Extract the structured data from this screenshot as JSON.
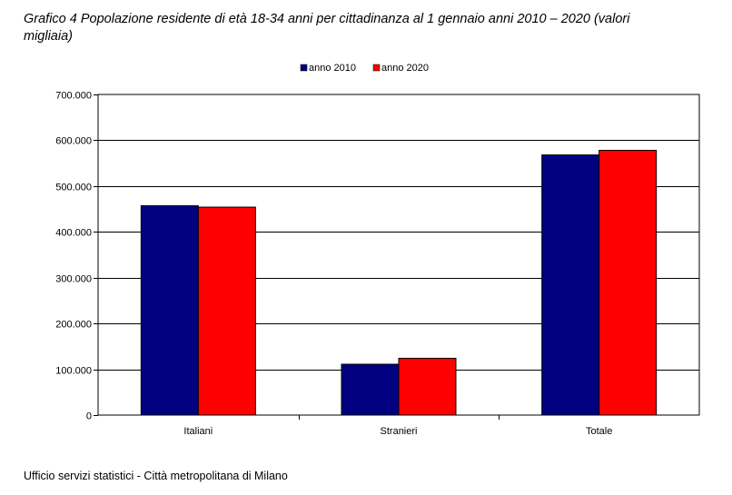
{
  "figure": {
    "title_line1": "Grafico 4  Popolazione residente di età 18-34 anni per cittadinanza al 1 gennaio anni 2010 – 2020 (valori",
    "title_line2": "migliaia)",
    "source": "Ufficio servizi statistici - Città metropolitana di Milano"
  },
  "chart_data": {
    "type": "bar",
    "categories": [
      "Italiani",
      "Stranieri",
      "Totale"
    ],
    "series": [
      {
        "name": "anno 2010",
        "color": "#000080",
        "values": [
          457000,
          111000,
          568000
        ]
      },
      {
        "name": "anno 2020",
        "color": "#ff0000",
        "values": [
          454000,
          124000,
          578000
        ]
      }
    ],
    "ylim": [
      0,
      700000
    ],
    "yticks": [
      0,
      100000,
      200000,
      300000,
      400000,
      500000,
      600000,
      700000
    ],
    "ytick_labels": [
      "0",
      "100.000",
      "200.000",
      "300.000",
      "400.000",
      "500.000",
      "600.000",
      "700.000"
    ],
    "grid": true,
    "legend_position": "top-center",
    "xlabel": "",
    "ylabel": ""
  }
}
